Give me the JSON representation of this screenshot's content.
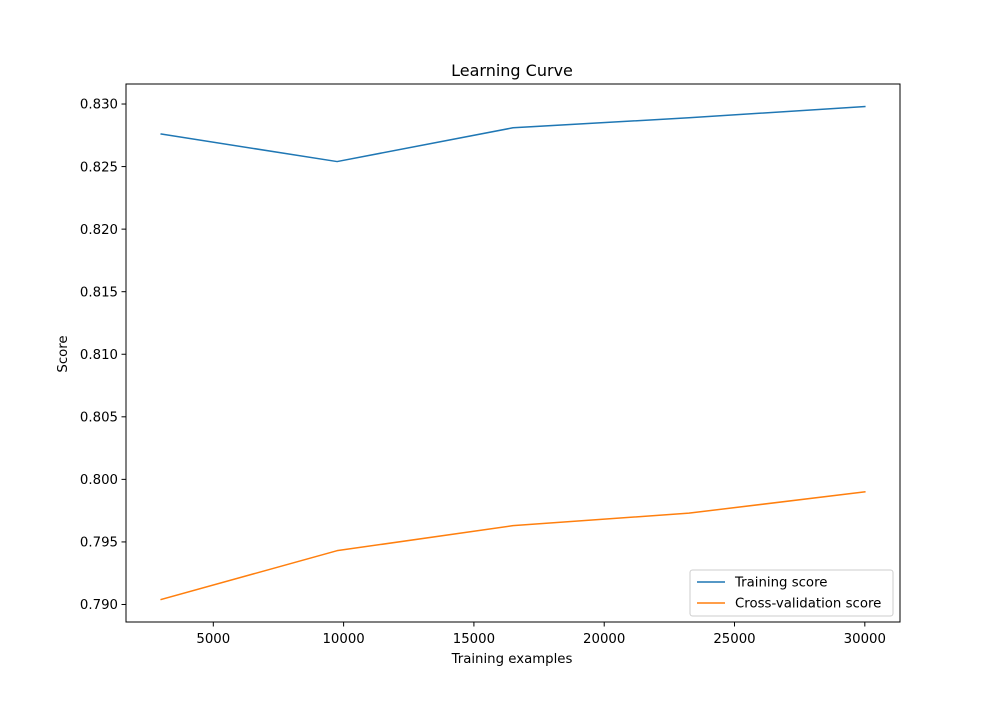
{
  "chart_data": {
    "type": "line",
    "title": "Learning Curve",
    "xlabel": "Training examples",
    "ylabel": "Score",
    "x": [
      3000,
      9750,
      16500,
      23250,
      30000
    ],
    "series": [
      {
        "name": "Training score",
        "color": "#1f77b4",
        "values": [
          0.8276,
          0.8254,
          0.8281,
          0.8289,
          0.8298
        ]
      },
      {
        "name": "Cross-validation score",
        "color": "#ff7f0e",
        "values": [
          0.7904,
          0.7943,
          0.7963,
          0.7973,
          0.799
        ]
      }
    ],
    "xlim": [
      1650,
      31350
    ],
    "ylim": [
      0.7886,
      0.8316
    ],
    "xticks": [
      5000,
      10000,
      15000,
      20000,
      25000,
      30000
    ],
    "yticks": [
      0.79,
      0.795,
      0.8,
      0.805,
      0.81,
      0.815,
      0.82,
      0.825,
      0.83
    ],
    "xtick_labels": [
      "5000",
      "10000",
      "15000",
      "20000",
      "25000",
      "30000"
    ],
    "ytick_labels": [
      "0.790",
      "0.795",
      "0.800",
      "0.805",
      "0.810",
      "0.815",
      "0.820",
      "0.825",
      "0.830"
    ],
    "grid": false,
    "legend_position": "lower-right"
  }
}
